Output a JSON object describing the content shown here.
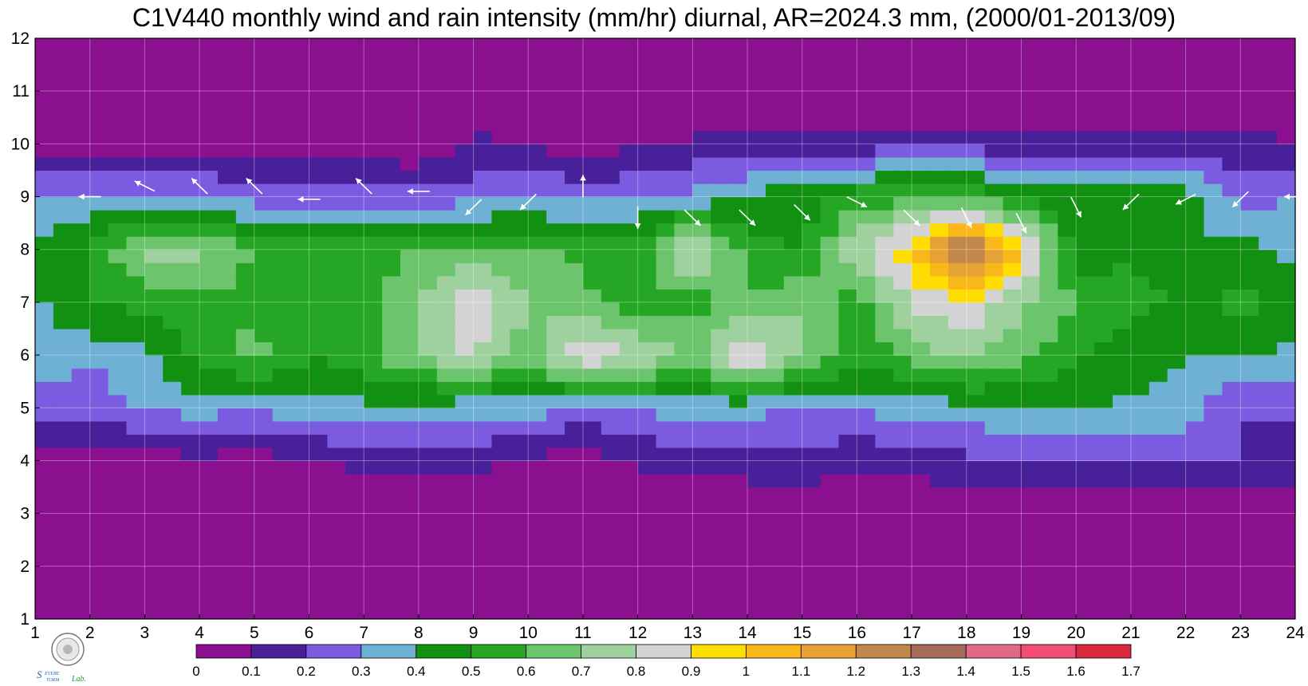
{
  "chart_data": {
    "type": "heatmap",
    "title": "C1V440 monthly wind and rain intensity (mm/hr) diurnal, AR=2024.3 mm, (2000/01-2013/09)",
    "xlabel": "",
    "ylabel": "",
    "xlim": [
      1,
      24
    ],
    "ylim": [
      1,
      12
    ],
    "x_ticks": [
      "1",
      "2",
      "3",
      "4",
      "5",
      "6",
      "7",
      "8",
      "9",
      "10",
      "11",
      "12",
      "13",
      "14",
      "15",
      "16",
      "17",
      "18",
      "19",
      "20",
      "21",
      "22",
      "23",
      "24"
    ],
    "y_ticks": [
      "1",
      "2",
      "3",
      "4",
      "5",
      "6",
      "7",
      "8",
      "9",
      "10",
      "11",
      "12"
    ],
    "grid": true,
    "colorbar": {
      "levels": [
        0,
        0.1,
        0.2,
        0.3,
        0.4,
        0.5,
        0.6,
        0.7,
        0.8,
        0.9,
        1,
        1.1,
        1.2,
        1.3,
        1.4,
        1.5,
        1.6,
        1.7
      ],
      "labels": [
        "0",
        "0.1",
        "0.2",
        "0.3",
        "0.4",
        "0.5",
        "0.6",
        "0.7",
        "0.8",
        "0.9",
        "1",
        "1.1",
        "1.2",
        "1.3",
        "1.4",
        "1.5",
        "1.6",
        "1.7"
      ],
      "colors": [
        "#8a108f",
        "#48209a",
        "#7b5be0",
        "#6fb0d5",
        "#129012",
        "#25a725",
        "#6cc46c",
        "#9fd19f",
        "#d3d3d3",
        "#ffdd00",
        "#f9b81a",
        "#e6a234",
        "#c2874a",
        "#a56b5b",
        "#e06888",
        "#f24d72",
        "#d9273b"
      ]
    },
    "intensity_hourly": [
      {
        "month": 4,
        "values": [
          0.08,
          0.05,
          0.03,
          0.08,
          0.05,
          0.09,
          0.12,
          0.15,
          0.13,
          0.08,
          0.03,
          0.12,
          0.14,
          0.16,
          0.18,
          0.12,
          0.15,
          0.18,
          0.2,
          0.2,
          0.23,
          0.22,
          0.2,
          0.16
        ]
      },
      {
        "month": 5,
        "values": [
          0.28,
          0.22,
          0.32,
          0.34,
          0.32,
          0.36,
          0.38,
          0.36,
          0.34,
          0.35,
          0.28,
          0.32,
          0.35,
          0.33,
          0.3,
          0.32,
          0.34,
          0.36,
          0.4,
          0.42,
          0.38,
          0.36,
          0.2,
          0.22
        ]
      },
      {
        "month": 6,
        "values": [
          0.35,
          0.32,
          0.38,
          0.55,
          0.65,
          0.5,
          0.56,
          0.72,
          0.81,
          0.63,
          0.92,
          0.82,
          0.68,
          0.91,
          0.72,
          0.55,
          0.62,
          0.75,
          0.62,
          0.52,
          0.45,
          0.4,
          0.4,
          0.37
        ]
      },
      {
        "month": 7,
        "values": [
          0.38,
          0.52,
          0.52,
          0.58,
          0.55,
          0.55,
          0.58,
          0.7,
          0.87,
          0.7,
          0.63,
          0.52,
          0.56,
          0.62,
          0.68,
          0.54,
          0.82,
          0.88,
          0.72,
          0.6,
          0.52,
          0.5,
          0.52,
          0.5
        ]
      },
      {
        "month": 8,
        "values": [
          0.45,
          0.5,
          0.75,
          0.72,
          0.6,
          0.58,
          0.55,
          0.6,
          0.62,
          0.62,
          0.58,
          0.54,
          0.86,
          0.55,
          0.48,
          0.78,
          0.98,
          1.37,
          0.98,
          0.42,
          0.5,
          0.4,
          0.44,
          0.36
        ]
      },
      {
        "month": 9,
        "values": [
          0.28,
          0.32,
          0.32,
          0.3,
          0.25,
          0.24,
          0.26,
          0.25,
          0.26,
          0.3,
          0.26,
          0.3,
          0.32,
          0.42,
          0.46,
          0.55,
          0.56,
          0.6,
          0.45,
          0.48,
          0.5,
          0.45,
          0.26,
          0.3
        ]
      },
      {
        "month": 10,
        "values": [
          0.06,
          0.05,
          0.05,
          0.05,
          0.06,
          0.06,
          0.05,
          0.0,
          0.12,
          0.1,
          0.04,
          0.08,
          0.12,
          0.12,
          0.13,
          0.14,
          0.16,
          0.15,
          0.14,
          0.12,
          0.13,
          0.14,
          0.13,
          0.1
        ]
      }
    ],
    "wind_arrows": [
      {
        "hour": 2,
        "month": 9.0,
        "direction": "west"
      },
      {
        "hour": 3,
        "month": 9.2,
        "direction": "west-northwest"
      },
      {
        "hour": 4,
        "month": 9.2,
        "direction": "northwest"
      },
      {
        "hour": 5,
        "month": 9.2,
        "direction": "northwest"
      },
      {
        "hour": 6,
        "month": 8.95,
        "direction": "west"
      },
      {
        "hour": 7,
        "month": 9.2,
        "direction": "northwest"
      },
      {
        "hour": 8,
        "month": 9.1,
        "direction": "west"
      },
      {
        "hour": 9,
        "month": 8.8,
        "direction": "southwest"
      },
      {
        "hour": 10,
        "month": 8.9,
        "direction": "southwest"
      },
      {
        "hour": 11,
        "month": 9.2,
        "direction": "north"
      },
      {
        "hour": 12,
        "month": 8.6,
        "direction": "south"
      },
      {
        "hour": 13,
        "month": 8.6,
        "direction": "southeast"
      },
      {
        "hour": 14,
        "month": 8.6,
        "direction": "southeast"
      },
      {
        "hour": 15,
        "month": 8.7,
        "direction": "southeast"
      },
      {
        "hour": 16,
        "month": 8.9,
        "direction": "east-southeast"
      },
      {
        "hour": 17,
        "month": 8.6,
        "direction": "southeast"
      },
      {
        "hour": 18,
        "month": 8.6,
        "direction": "south-southeast"
      },
      {
        "hour": 19,
        "month": 8.5,
        "direction": "south-southeast"
      },
      {
        "hour": 20,
        "month": 8.8,
        "direction": "south-southeast"
      },
      {
        "hour": 21,
        "month": 8.9,
        "direction": "southwest"
      },
      {
        "hour": 22,
        "month": 8.95,
        "direction": "west-southwest"
      },
      {
        "hour": 23,
        "month": 8.95,
        "direction": "southwest"
      },
      {
        "hour": 24,
        "month": 9.0,
        "direction": "west"
      }
    ]
  },
  "logo": {
    "emblem_icon": "seal-icon",
    "text": "Severe Storm Lab."
  }
}
